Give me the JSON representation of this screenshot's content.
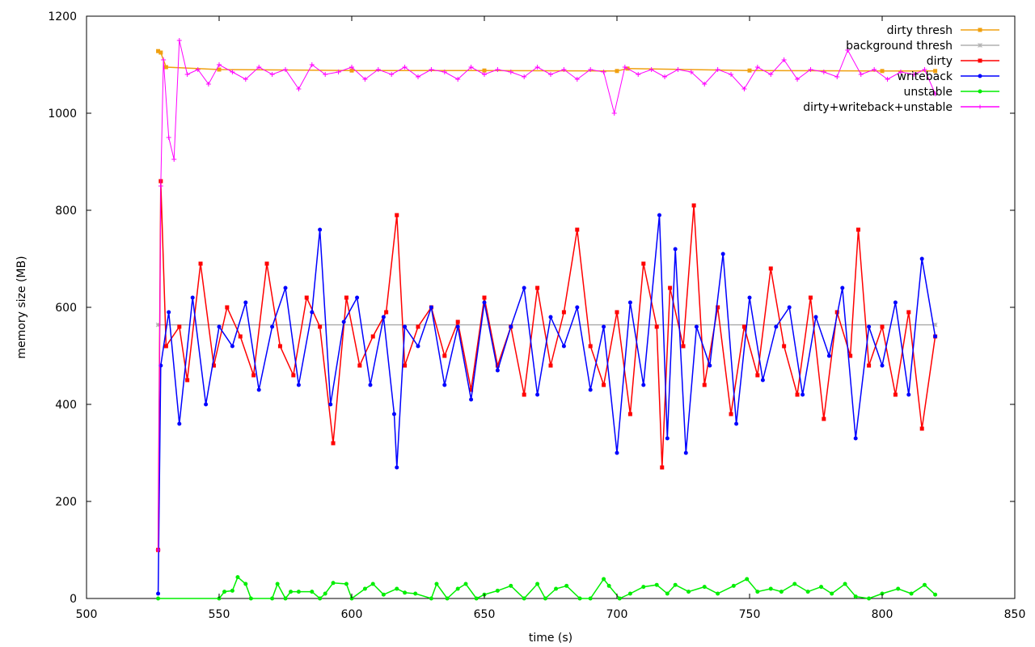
{
  "chart_data": {
    "type": "line",
    "xlabel": "time (s)",
    "ylabel": "memory size (MB)",
    "xlim": [
      500,
      850
    ],
    "ylim": [
      0,
      1200
    ],
    "xticks": [
      500,
      550,
      600,
      650,
      700,
      750,
      800,
      850
    ],
    "yticks": [
      0,
      200,
      400,
      600,
      800,
      1000,
      1200
    ],
    "grid": false,
    "legend_position": "top-right",
    "series": [
      {
        "name": "dirty thresh",
        "color": "#f0a010",
        "marker": "square",
        "x": [
          527,
          528,
          530,
          550,
          600,
          650,
          700,
          704,
          750,
          800,
          820
        ],
        "y": [
          1128,
          1125,
          1095,
          1090,
          1088,
          1088,
          1087,
          1092,
          1088,
          1087,
          1087
        ]
      },
      {
        "name": "background thresh",
        "color": "#b0b0b0",
        "marker": "star",
        "x": [
          527,
          820
        ],
        "y": [
          564,
          564
        ]
      },
      {
        "name": "dirty",
        "color": "#ff0000",
        "marker": "square",
        "x": [
          527,
          528,
          530,
          535,
          538,
          543,
          548,
          553,
          558,
          563,
          568,
          573,
          578,
          583,
          588,
          593,
          598,
          603,
          608,
          613,
          617,
          620,
          625,
          630,
          635,
          640,
          645,
          650,
          655,
          660,
          665,
          670,
          675,
          680,
          685,
          690,
          695,
          700,
          705,
          710,
          715,
          717,
          720,
          725,
          729,
          733,
          738,
          743,
          748,
          753,
          758,
          763,
          768,
          773,
          778,
          783,
          788,
          791,
          795,
          800,
          805,
          810,
          815,
          820
        ],
        "y": [
          100,
          860,
          520,
          560,
          450,
          690,
          480,
          600,
          540,
          460,
          690,
          520,
          460,
          620,
          560,
          320,
          620,
          480,
          540,
          590,
          790,
          480,
          560,
          600,
          500,
          570,
          430,
          620,
          480,
          560,
          420,
          640,
          480,
          590,
          760,
          520,
          440,
          590,
          380,
          690,
          560,
          270,
          640,
          520,
          810,
          440,
          600,
          380,
          560,
          460,
          680,
          520,
          420,
          620,
          370,
          590,
          500,
          760,
          480,
          560,
          420,
          590,
          350,
          540
        ]
      },
      {
        "name": "writeback",
        "color": "#0000ff",
        "marker": "circle",
        "x": [
          527,
          528,
          531,
          535,
          540,
          545,
          550,
          555,
          560,
          565,
          570,
          575,
          580,
          585,
          588,
          592,
          597,
          602,
          607,
          612,
          616,
          617,
          620,
          625,
          630,
          635,
          640,
          645,
          650,
          655,
          660,
          665,
          670,
          675,
          680,
          685,
          690,
          695,
          700,
          705,
          710,
          716,
          719,
          722,
          726,
          730,
          735,
          740,
          745,
          750,
          755,
          760,
          765,
          770,
          775,
          780,
          785,
          790,
          795,
          800,
          805,
          810,
          815,
          820
        ],
        "y": [
          10,
          480,
          590,
          360,
          620,
          400,
          560,
          520,
          610,
          430,
          560,
          640,
          440,
          590,
          760,
          400,
          570,
          620,
          440,
          580,
          380,
          270,
          560,
          520,
          600,
          440,
          560,
          410,
          610,
          470,
          560,
          640,
          420,
          580,
          520,
          600,
          430,
          560,
          300,
          610,
          440,
          790,
          330,
          720,
          300,
          560,
          480,
          710,
          360,
          620,
          450,
          560,
          600,
          420,
          580,
          500,
          640,
          330,
          560,
          480,
          610,
          420,
          700,
          540
        ]
      },
      {
        "name": "unstable",
        "color": "#00ee00",
        "marker": "circle",
        "x": [
          527,
          550,
          552,
          555,
          557,
          560,
          562,
          570,
          572,
          575,
          577,
          580,
          585,
          588,
          590,
          593,
          598,
          600,
          605,
          608,
          612,
          617,
          620,
          624,
          630,
          632,
          636,
          640,
          643,
          647,
          650,
          655,
          660,
          665,
          670,
          673,
          677,
          681,
          686,
          690,
          695,
          697,
          701,
          705,
          710,
          715,
          719,
          722,
          727,
          733,
          738,
          744,
          749,
          753,
          758,
          762,
          767,
          772,
          777,
          781,
          786,
          790,
          795,
          800,
          806,
          811,
          816,
          820
        ],
        "y": [
          0,
          0,
          14,
          16,
          44,
          30,
          0,
          0,
          30,
          0,
          14,
          14,
          14,
          0,
          10,
          32,
          30,
          0,
          20,
          30,
          8,
          20,
          12,
          10,
          0,
          30,
          0,
          20,
          30,
          0,
          8,
          16,
          26,
          0,
          30,
          0,
          20,
          26,
          0,
          0,
          40,
          26,
          0,
          10,
          24,
          28,
          10,
          28,
          14,
          24,
          10,
          26,
          40,
          14,
          20,
          14,
          30,
          14,
          24,
          10,
          30,
          4,
          0,
          10,
          20,
          10,
          28,
          8
        ]
      },
      {
        "name": "dirty+writeback+unstable",
        "color": "#ff00ff",
        "marker": "plus",
        "x": [
          527,
          528,
          529,
          531,
          533,
          535,
          538,
          542,
          546,
          550,
          555,
          560,
          565,
          570,
          575,
          580,
          585,
          590,
          595,
          600,
          605,
          610,
          615,
          620,
          625,
          630,
          635,
          640,
          645,
          650,
          655,
          660,
          665,
          670,
          675,
          680,
          685,
          690,
          695,
          699,
          703,
          708,
          713,
          718,
          723,
          728,
          733,
          738,
          743,
          748,
          753,
          758,
          763,
          768,
          773,
          778,
          783,
          787,
          792,
          797,
          802,
          807,
          812,
          816,
          820
        ],
        "y": [
          100,
          850,
          1110,
          950,
          905,
          1150,
          1080,
          1090,
          1060,
          1100,
          1085,
          1070,
          1095,
          1080,
          1090,
          1050,
          1100,
          1080,
          1085,
          1095,
          1070,
          1090,
          1080,
          1095,
          1075,
          1090,
          1085,
          1070,
          1095,
          1080,
          1090,
          1085,
          1075,
          1095,
          1080,
          1090,
          1070,
          1090,
          1085,
          1000,
          1095,
          1080,
          1090,
          1075,
          1090,
          1085,
          1060,
          1090,
          1080,
          1050,
          1095,
          1080,
          1110,
          1070,
          1090,
          1085,
          1075,
          1130,
          1080,
          1090,
          1070,
          1085,
          1080,
          1090,
          1040
        ]
      }
    ]
  }
}
